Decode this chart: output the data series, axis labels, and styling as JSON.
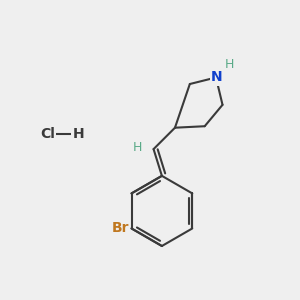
{
  "background_color": "#efefef",
  "bond_color": "#3a3a3a",
  "bond_width": 1.5,
  "atom_labels": {
    "N": {
      "color": "#1040cc",
      "fontsize": 10,
      "fontweight": "bold"
    },
    "H_N": {
      "color": "#5aaa88",
      "fontsize": 9
    },
    "H_vinyl": {
      "color": "#5aaa88",
      "fontsize": 9
    },
    "Br": {
      "color": "#c07820",
      "fontsize": 10,
      "fontweight": "bold"
    },
    "Cl": {
      "color": "#3a3a3a",
      "fontsize": 10,
      "fontweight": "bold"
    },
    "H_hcl": {
      "color": "#3a3a3a",
      "fontsize": 10,
      "fontweight": "bold"
    }
  },
  "figsize": [
    3.0,
    3.0
  ],
  "dpi": 100,
  "xlim": [
    0,
    10
  ],
  "ylim": [
    0,
    10
  ]
}
